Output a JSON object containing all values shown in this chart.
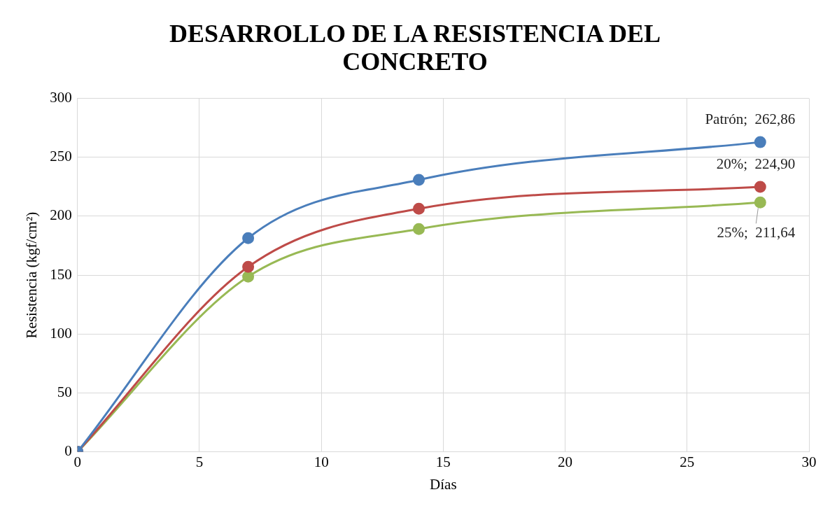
{
  "chart_data": {
    "type": "line",
    "title": "DESARROLLO DE LA RESISTENCIA DEL CONCRETO",
    "xlabel": "Días",
    "ylabel": "Resistencia (kgf/cm²)",
    "x": [
      0,
      7,
      14,
      28
    ],
    "series": [
      {
        "color": "#4a7ebb",
        "values": [
          0,
          181.4,
          230.8,
          262.86
        ],
        "value_labels": [
          null,
          null,
          null,
          "Patrón;  262,86"
        ]
      },
      {
        "color": "#be4b48",
        "values": [
          0,
          157,
          206.4,
          224.9
        ],
        "value_labels": [
          null,
          null,
          null,
          "20%;  224,90"
        ]
      },
      {
        "color": "#98b954",
        "values": [
          0,
          148.7,
          189.1,
          211.64
        ],
        "value_labels": [
          null,
          null,
          null,
          "25%;  211,64"
        ]
      }
    ],
    "xlim": [
      0,
      30
    ],
    "xticks": [
      0,
      5,
      10,
      15,
      20,
      25,
      30
    ],
    "ylim": [
      0,
      300
    ],
    "yticks": [
      0,
      50,
      100,
      150,
      200,
      250,
      300
    ],
    "grid": true,
    "legend": false,
    "marker": "circle",
    "line_style": "solid"
  }
}
